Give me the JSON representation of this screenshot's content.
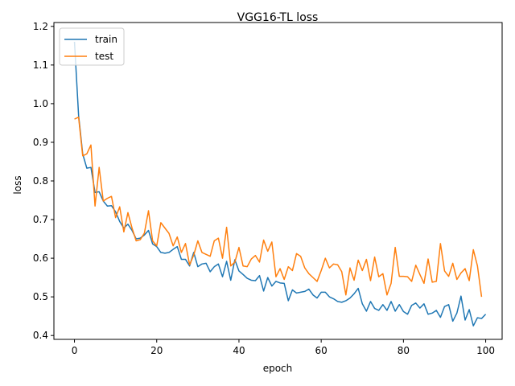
{
  "chart_data": {
    "type": "line",
    "title": "VGG16-TL loss",
    "xlabel": "epoch",
    "ylabel": "loss",
    "xlim": [
      -5,
      104
    ],
    "ylim": [
      0.39,
      1.21
    ],
    "xticks": [
      0,
      20,
      40,
      60,
      80,
      100
    ],
    "yticks": [
      0.4,
      0.5,
      0.6,
      0.7,
      0.8,
      0.9,
      1.0,
      1.1,
      1.2
    ],
    "grid": false,
    "legend_position": "upper-left",
    "series": [
      {
        "name": "train",
        "color": "#1f77b4",
        "values": [
          1.16,
          0.97,
          0.87,
          0.833,
          0.835,
          0.77,
          0.772,
          0.748,
          0.735,
          0.736,
          0.72,
          0.695,
          0.678,
          0.688,
          0.672,
          0.65,
          0.652,
          0.66,
          0.672,
          0.637,
          0.63,
          0.615,
          0.613,
          0.615,
          0.623,
          0.63,
          0.597,
          0.597,
          0.58,
          0.615,
          0.578,
          0.585,
          0.587,
          0.565,
          0.578,
          0.585,
          0.552,
          0.592,
          0.543,
          0.596,
          0.567,
          0.558,
          0.548,
          0.543,
          0.542,
          0.555,
          0.515,
          0.55,
          0.528,
          0.54,
          0.536,
          0.535,
          0.49,
          0.518,
          0.51,
          0.512,
          0.514,
          0.52,
          0.505,
          0.497,
          0.512,
          0.512,
          0.5,
          0.495,
          0.488,
          0.486,
          0.49,
          0.497,
          0.508,
          0.522,
          0.482,
          0.463,
          0.488,
          0.47,
          0.465,
          0.48,
          0.465,
          0.488,
          0.463,
          0.48,
          0.462,
          0.455,
          0.478,
          0.484,
          0.471,
          0.482,
          0.455,
          0.458,
          0.465,
          0.447,
          0.475,
          0.48,
          0.437,
          0.458,
          0.502,
          0.44,
          0.467,
          0.425,
          0.446,
          0.444,
          0.455
        ]
      },
      {
        "name": "test",
        "color": "#ff7f0e",
        "values": [
          0.96,
          0.965,
          0.865,
          0.87,
          0.893,
          0.735,
          0.835,
          0.748,
          0.755,
          0.76,
          0.705,
          0.733,
          0.668,
          0.718,
          0.678,
          0.645,
          0.648,
          0.665,
          0.723,
          0.645,
          0.632,
          0.692,
          0.678,
          0.664,
          0.632,
          0.655,
          0.615,
          0.638,
          0.583,
          0.608,
          0.645,
          0.615,
          0.61,
          0.605,
          0.645,
          0.652,
          0.6,
          0.68,
          0.58,
          0.59,
          0.628,
          0.58,
          0.578,
          0.598,
          0.607,
          0.59,
          0.647,
          0.618,
          0.642,
          0.552,
          0.573,
          0.545,
          0.578,
          0.568,
          0.612,
          0.605,
          0.575,
          0.56,
          0.55,
          0.54,
          0.568,
          0.6,
          0.575,
          0.585,
          0.583,
          0.565,
          0.505,
          0.575,
          0.543,
          0.595,
          0.568,
          0.597,
          0.542,
          0.603,
          0.552,
          0.56,
          0.505,
          0.535,
          0.628,
          0.553,
          0.553,
          0.552,
          0.54,
          0.582,
          0.558,
          0.535,
          0.598,
          0.538,
          0.54,
          0.638,
          0.567,
          0.553,
          0.587,
          0.545,
          0.562,
          0.573,
          0.542,
          0.622,
          0.58,
          0.5
        ]
      }
    ]
  }
}
